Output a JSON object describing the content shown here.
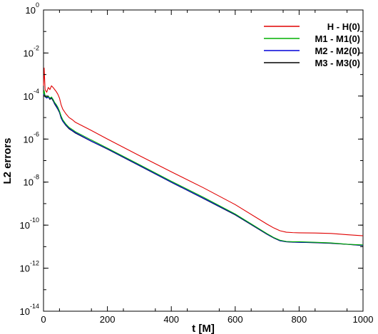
{
  "chart_data": {
    "type": "line",
    "title": "",
    "xlabel": "t [M]",
    "ylabel": "L2 errors",
    "xlim": [
      0,
      1000
    ],
    "ylim_log10": [
      -14,
      0
    ],
    "yscale": "log",
    "xticks": [
      0,
      200,
      400,
      600,
      800,
      1000
    ],
    "yticks": [
      {
        "base": "10",
        "exp": "0",
        "value": 1
      },
      {
        "base": "10",
        "exp": "-2",
        "value": 0.01
      },
      {
        "base": "10",
        "exp": "-4",
        "value": 0.0001
      },
      {
        "base": "10",
        "exp": "-6",
        "value": 1e-06
      },
      {
        "base": "10",
        "exp": "-8",
        "value": 1e-08
      },
      {
        "base": "10",
        "exp": "-10",
        "value": 1e-10
      },
      {
        "base": "10",
        "exp": "-12",
        "value": 1e-12
      },
      {
        "base": "10",
        "exp": "-14",
        "value": 1e-14
      }
    ],
    "grid": false,
    "legend_position": "top-right",
    "series": [
      {
        "name": "H - H(0)",
        "color": "#e00000",
        "x": [
          0,
          2,
          5,
          10,
          15,
          20,
          25,
          30,
          35,
          40,
          45,
          50,
          55,
          60,
          70,
          80,
          90,
          100,
          150,
          200,
          300,
          400,
          500,
          600,
          700,
          720,
          740,
          760,
          780,
          800,
          850,
          900,
          950,
          1000
        ],
        "y": [
          0.0003,
          0.002,
          0.0002,
          0.00015,
          0.00025,
          0.0002,
          0.0003,
          0.00025,
          0.0002,
          0.00016,
          0.00012,
          8e-05,
          4e-05,
          2.5e-05,
          1.5e-05,
          1e-05,
          8e-06,
          6e-06,
          2.5e-06,
          1e-06,
          1.7e-07,
          3e-08,
          5.5e-09,
          9e-10,
          1.1e-10,
          7.5e-11,
          5.5e-11,
          4.7e-11,
          4.5e-11,
          4.4e-11,
          4.3e-11,
          4.1e-11,
          3.6e-11,
          3.2e-11
        ]
      },
      {
        "name": "M1 - M1(0)",
        "color": "#00b000",
        "x": [
          0,
          2,
          5,
          10,
          15,
          20,
          25,
          30,
          35,
          40,
          45,
          50,
          55,
          60,
          70,
          80,
          90,
          100,
          150,
          200,
          300,
          400,
          500,
          600,
          700,
          720,
          740,
          760,
          780,
          800,
          850,
          900,
          950,
          1000
        ],
        "y": [
          0.00012,
          0.00018,
          0.0001,
          9e-05,
          0.0001,
          8e-05,
          9e-05,
          7e-05,
          5e-05,
          4e-05,
          3e-05,
          2e-05,
          1.2e-05,
          8e-06,
          5e-06,
          3.5e-06,
          2.8e-06,
          2.2e-06,
          9e-07,
          3.8e-07,
          6.5e-08,
          1.1e-08,
          2e-09,
          3.3e-10,
          4e-11,
          2.7e-11,
          2e-11,
          1.75e-11,
          1.7e-11,
          1.7e-11,
          1.6e-11,
          1.5e-11,
          1.3e-11,
          1.2e-11
        ]
      },
      {
        "name": "M2 - M2(0)",
        "color": "#0000d8",
        "x": [
          0,
          2,
          5,
          10,
          15,
          20,
          25,
          30,
          35,
          40,
          45,
          50,
          55,
          60,
          70,
          80,
          90,
          100,
          150,
          200,
          300,
          400,
          500,
          600,
          700,
          720,
          740,
          760,
          780,
          800,
          850,
          900,
          950,
          1000
        ],
        "y": [
          0.00011,
          0.00016,
          9.5e-05,
          8e-05,
          9e-05,
          7.5e-05,
          8.5e-05,
          6.5e-05,
          4.5e-05,
          3.5e-05,
          2.5e-05,
          1.8e-05,
          1e-05,
          7e-06,
          4.5e-06,
          3.2e-06,
          2.5e-06,
          2e-06,
          8e-07,
          3.5e-07,
          6e-08,
          1e-08,
          1.8e-09,
          3.1e-10,
          3.8e-11,
          2.6e-11,
          1.9e-11,
          1.7e-11,
          1.65e-11,
          1.6e-11,
          1.55e-11,
          1.45e-11,
          1.3e-11,
          1.15e-11
        ]
      },
      {
        "name": "M3 - M3(0)",
        "color": "#000000",
        "x": [
          0,
          2,
          5,
          10,
          15,
          20,
          25,
          30,
          35,
          40,
          45,
          50,
          55,
          60,
          70,
          80,
          90,
          100,
          150,
          200,
          300,
          400,
          500,
          600,
          700,
          720,
          740,
          760,
          780,
          800,
          850,
          900,
          950,
          1000
        ],
        "y": [
          0.0001,
          0.00015,
          9e-05,
          8.5e-05,
          9e-05,
          7e-05,
          8e-05,
          6e-05,
          4.2e-05,
          3.2e-05,
          2.4e-05,
          1.7e-05,
          9.5e-06,
          6.8e-06,
          4.3e-06,
          3e-06,
          2.4e-06,
          1.9e-06,
          7.8e-07,
          3.4e-07,
          5.8e-08,
          9.8e-09,
          1.75e-09,
          3e-10,
          3.7e-11,
          2.55e-11,
          1.88e-11,
          1.68e-11,
          1.62e-11,
          1.6e-11,
          1.52e-11,
          1.43e-11,
          1.28e-11,
          1.12e-11
        ]
      }
    ]
  }
}
